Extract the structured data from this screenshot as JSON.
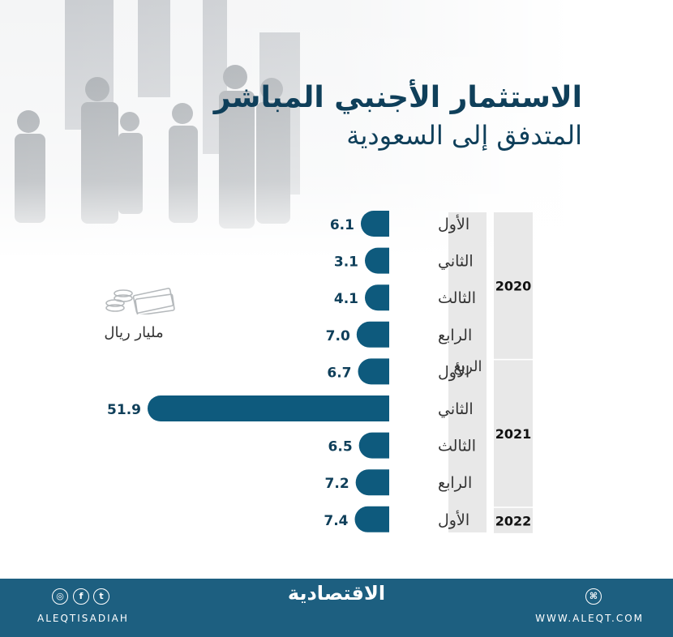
{
  "title": {
    "line1": "الاستثمار الأجنبي المباشر",
    "line2": "المتدفق إلى السعودية"
  },
  "unit_label": "مليار ريال",
  "chart_data": {
    "type": "bar",
    "orientation": "horizontal",
    "title": "الاستثمار الأجنبي المباشر المتدفق إلى السعودية",
    "unit": "مليار ريال",
    "quarter_axis_label": "الربع",
    "groups": [
      {
        "year": "2020",
        "quarters": [
          "الأول",
          "الثاني",
          "الثالث",
          "الرابع"
        ],
        "values": [
          6.1,
          3.1,
          4.1,
          7.0
        ],
        "labels": [
          "6.1",
          "3.1",
          "4.1",
          "7.0"
        ]
      },
      {
        "year": "2021",
        "quarters": [
          "الأول",
          "الثاني",
          "الثالث",
          "الرابع"
        ],
        "values": [
          6.7,
          51.9,
          6.5,
          7.2
        ],
        "labels": [
          "6.7",
          "51.9",
          "6.5",
          "7.2"
        ]
      },
      {
        "year": "2022",
        "quarters": [
          "الأول"
        ],
        "values": [
          7.4
        ],
        "labels": [
          "7.4"
        ]
      }
    ],
    "colors": {
      "bar": "#0e5a7d",
      "label": "#0f3f5a",
      "panel": "#e8e8e8"
    }
  },
  "footer": {
    "logo": "الاقتصادية",
    "handle": "ALEQTISADIAH",
    "website": "WWW.ALEQT.COM",
    "icons": [
      "instagram-icon",
      "facebook-icon",
      "twitter-icon",
      "web-icon"
    ]
  }
}
